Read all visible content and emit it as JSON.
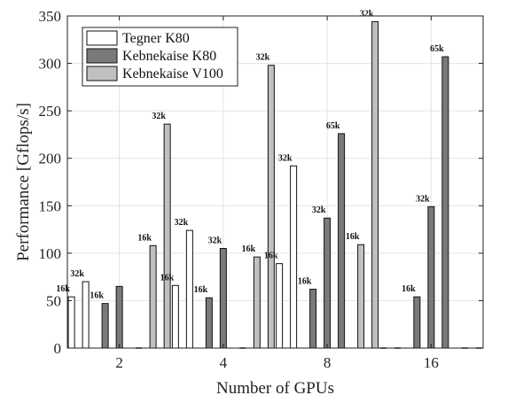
{
  "chart_data": {
    "type": "bar",
    "xlabel": "Number of GPUs",
    "ylabel": "Performance [Gflops/s]",
    "ylim": [
      0,
      350
    ],
    "yticks": [
      0,
      50,
      100,
      150,
      200,
      250,
      300,
      350
    ],
    "categories": [
      "2",
      "4",
      "8",
      "16"
    ],
    "grid": true,
    "legend_position": "top-left",
    "series": [
      {
        "name": "Tegner K80",
        "color": "#ffffff",
        "bars": [
          [
            {
              "label": "16k",
              "value": 54
            },
            {
              "label": "32k",
              "value": 70
            }
          ],
          [
            {
              "label": "16k",
              "value": 66
            },
            {
              "label": "32k",
              "value": 124
            }
          ],
          [
            {
              "label": "16k",
              "value": 89
            },
            {
              "label": "32k",
              "value": 192
            }
          ],
          [
            {
              "label": "",
              "value": 0
            },
            {
              "label": "",
              "value": 0
            }
          ]
        ]
      },
      {
        "name": "Kebnekaise K80",
        "color": "#7a7a7a",
        "bars": [
          [
            {
              "label": "16k",
              "value": 47
            },
            {
              "label": "",
              "value": 65
            }
          ],
          [
            {
              "label": "16k",
              "value": 53
            },
            {
              "label": "32k",
              "value": 105
            }
          ],
          [
            {
              "label": "16k",
              "value": 62
            },
            {
              "label": "32k",
              "value": 137
            },
            {
              "label": "65k",
              "value": 226
            }
          ],
          [
            {
              "label": "16k",
              "value": 54
            },
            {
              "label": "32k",
              "value": 149
            },
            {
              "label": "65k",
              "value": 307
            }
          ]
        ]
      },
      {
        "name": "Kebnekaise V100",
        "color": "#c0c0c0",
        "bars": [
          [
            {
              "label": "",
              "value": 0
            },
            {
              "label": "16k",
              "value": 108
            },
            {
              "label": "32k",
              "value": 236
            }
          ],
          [
            {
              "label": "",
              "value": 0
            },
            {
              "label": "16k",
              "value": 96
            },
            {
              "label": "32k",
              "value": 298
            }
          ],
          [
            {
              "label": "16k",
              "value": 109
            },
            {
              "label": "32k",
              "value": 344
            }
          ],
          [
            {
              "label": "",
              "value": 0
            },
            {
              "label": "",
              "value": 0
            }
          ]
        ]
      }
    ]
  }
}
